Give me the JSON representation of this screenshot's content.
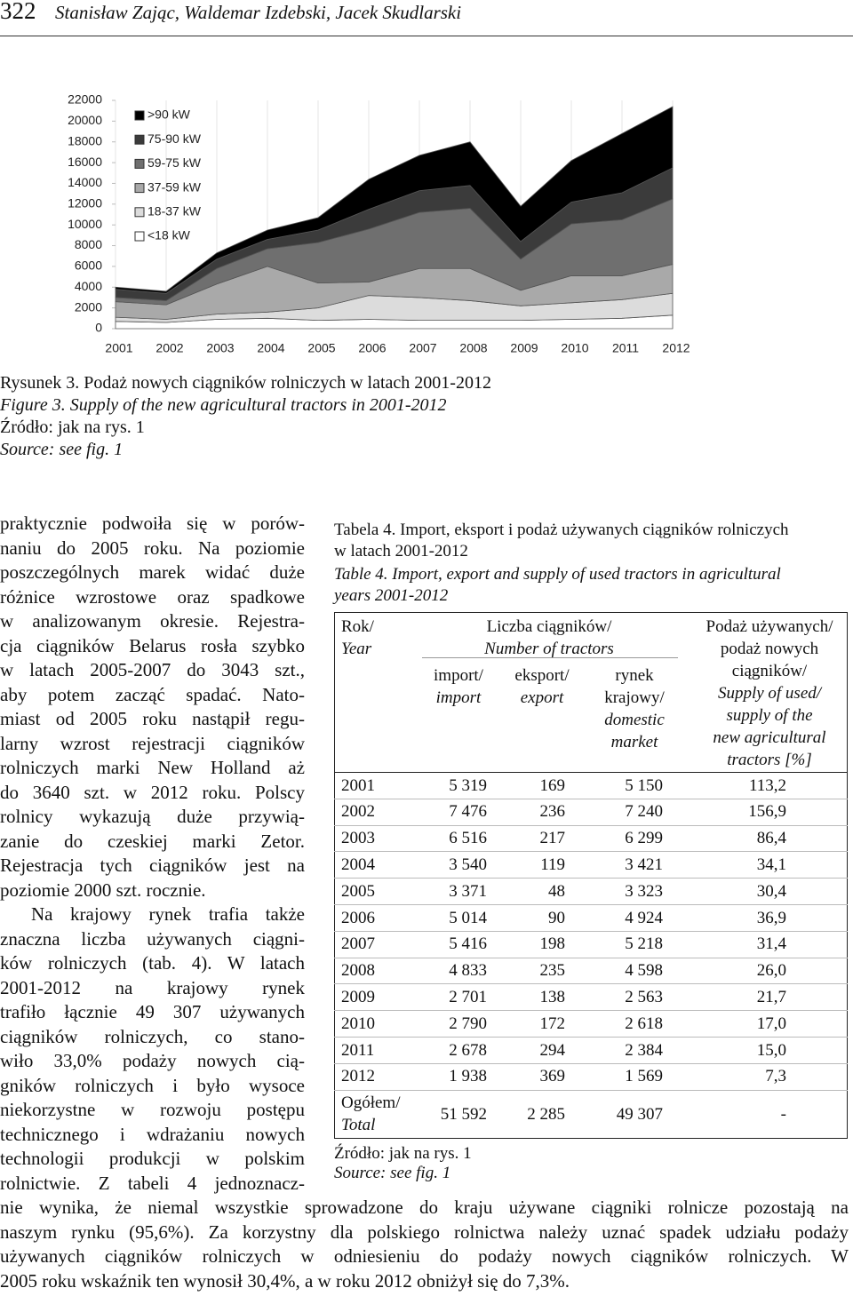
{
  "header": {
    "page_number": "322",
    "authors": "Stanisław Zając, Waldemar Izdebski, Jacek Skudlarski"
  },
  "chart_data": {
    "type": "area",
    "stacked": true,
    "categories": [
      "2001",
      "2002",
      "2003",
      "2004",
      "2005",
      "2006",
      "2007",
      "2008",
      "2009",
      "2010",
      "2011",
      "2012"
    ],
    "series": [
      {
        "name": "<18 kW",
        "color": "#ffffff",
        "values": [
          700,
          600,
          900,
          1000,
          800,
          900,
          800,
          800,
          800,
          900,
          1000,
          1300
        ]
      },
      {
        "name": "18-37 kW",
        "color": "#dcdcdc",
        "values": [
          400,
          300,
          500,
          600,
          1200,
          2300,
          2200,
          1900,
          1400,
          1600,
          1800,
          2100
        ]
      },
      {
        "name": "37-59 kW",
        "color": "#a9a9a9",
        "values": [
          1500,
          1400,
          2900,
          4400,
          2400,
          1300,
          2800,
          3100,
          1500,
          2600,
          2300,
          2800
        ]
      },
      {
        "name": "59-75 kW",
        "color": "#6f6f6f",
        "values": [
          400,
          400,
          1500,
          1700,
          3900,
          5100,
          5400,
          5800,
          3000,
          5000,
          5400,
          6300
        ]
      },
      {
        "name": "75-90 kW",
        "color": "#3b3b3b",
        "values": [
          800,
          700,
          900,
          900,
          1200,
          1900,
          2100,
          2200,
          1700,
          2100,
          2600,
          3000
        ]
      },
      {
        "name": ">90 kW",
        "color": "#000000",
        "values": [
          200,
          200,
          600,
          900,
          1200,
          2900,
          3400,
          4200,
          3400,
          4000,
          5700,
          5900
        ]
      }
    ],
    "ylim": [
      0,
      22000
    ],
    "yticks": [
      0,
      2000,
      4000,
      6000,
      8000,
      10000,
      12000,
      14000,
      16000,
      18000,
      20000,
      22000
    ],
    "legend": "upper left"
  },
  "figure_caption": {
    "title_pl": "Rysunek 3. Podaż nowych ciągników rolniczych w latach 2001-2012",
    "title_en": "Figure 3. Supply of the new agricultural tractors in 2001-2012",
    "source_pl": "Źródło: jak na rys. 1",
    "source_en": "Source: see fig. 1"
  },
  "body": {
    "paragraphs": [
      {
        "lines": [
          "praktycznie podwoiła się w porów-",
          "naniu do 2005 roku. Na poziomie",
          "poszczególnych marek widać duże",
          "różnice wzrostowe oraz spadkowe",
          "w analizowanym okresie. Rejestra-",
          "cja ciągników Belarus rosła szybko",
          "w latach 2005-2007 do 3043 szt.,",
          "aby potem zacząć spadać. Nato-",
          "miast od 2005 roku nastąpił regu-",
          "larny wzrost rejestracji ciągników",
          "rolniczych marki New Holland aż",
          "do 3640 szt. w 2012 roku. Polscy",
          "rolnicy wykazują duże przywią-",
          "zanie do czeskiej marki Zetor.",
          "Rejestracja tych ciągników jest na",
          "poziomie 2000 szt. rocznie."
        ]
      },
      {
        "lines": [
          "Na krajowy rynek trafia także",
          "znaczna liczba używanych ciągni-",
          "ków rolniczych (tab. 4). W latach",
          "2001-2012 na krajowy rynek",
          "trafiło łącznie 49 307 używanych",
          "ciągników rolniczych, co stano-",
          "wiło 33,0% podaży nowych cią-",
          "gników rolniczych i było wysoce",
          "niekorzystne w rozwoju postępu",
          "technicznego i wdrażaniu nowych",
          "technologii produkcji w polskim",
          "rolnictwie. Z tabeli 4 jednoznacz-",
          "nie wynika, że niemal wszystkie sprowadzone do kraju używane ciągniki rolnicze pozostają na",
          "naszym rynku (95,6%). Za korzystny dla polskiego rolnictwa należy uznać spadek udziału podaży",
          "używanych ciągników rolniczych w odniesieniu do podaży nowych ciągników rolniczych. W",
          "2005 roku wskaźnik ten wynosił 30,4%, a w roku 2012 obniżył się do 7,3%."
        ]
      }
    ]
  },
  "table": {
    "title_pl_lines": [
      "Tabela 4. Import, eksport i podaż używanych ciągników rolniczych",
      "w latach 2001-2012"
    ],
    "title_en_lines": [
      "Table 4. Import, export and supply of used tractors in agricultural",
      "years 2001-2012"
    ],
    "header": {
      "year_pl": "Rok/",
      "year_en": "Year",
      "count_pl": "Liczba ciągników/",
      "count_en": "Number of tractors",
      "import_pl": "import/",
      "import_en": "import",
      "export_pl": "eksport/",
      "export_en": "export",
      "market_pl_lines": [
        "rynek",
        "krajowy/"
      ],
      "market_en_lines": [
        "domestic",
        "market"
      ],
      "supply_pl_lines": [
        "Podaż używanych/",
        "podaż nowych",
        "ciągników/"
      ],
      "supply_en_lines": [
        "Supply of used/",
        "supply of the",
        "new agricultural",
        "tractors [%]"
      ]
    },
    "rows": [
      [
        "2001",
        "5 319",
        "169",
        "5 150",
        "113,2"
      ],
      [
        "2002",
        "7 476",
        "236",
        "7 240",
        "156,9"
      ],
      [
        "2003",
        "6 516",
        "217",
        "6 299",
        "86,4"
      ],
      [
        "2004",
        "3 540",
        "119",
        "3 421",
        "34,1"
      ],
      [
        "2005",
        "3 371",
        "48",
        "3 323",
        "30,4"
      ],
      [
        "2006",
        "5 014",
        "90",
        "4 924",
        "36,9"
      ],
      [
        "2007",
        "5 416",
        "198",
        "5 218",
        "31,4"
      ],
      [
        "2008",
        "4 833",
        "235",
        "4 598",
        "26,0"
      ],
      [
        "2009",
        "2 701",
        "138",
        "2 563",
        "21,7"
      ],
      [
        "2010",
        "2 790",
        "172",
        "2 618",
        "17,0"
      ],
      [
        "2011",
        "2 678",
        "294",
        "2 384",
        "15,0"
      ],
      [
        "2012",
        "1 938",
        "369",
        "1 569",
        "7,3"
      ]
    ],
    "total": {
      "label_pl": "Ogółem/",
      "label_en": "Total",
      "values": [
        "51 592",
        "2 285",
        "49 307",
        "-"
      ]
    },
    "source_pl": "Źródło: jak na rys. 1",
    "source_en": "Source: see fig. 1"
  }
}
